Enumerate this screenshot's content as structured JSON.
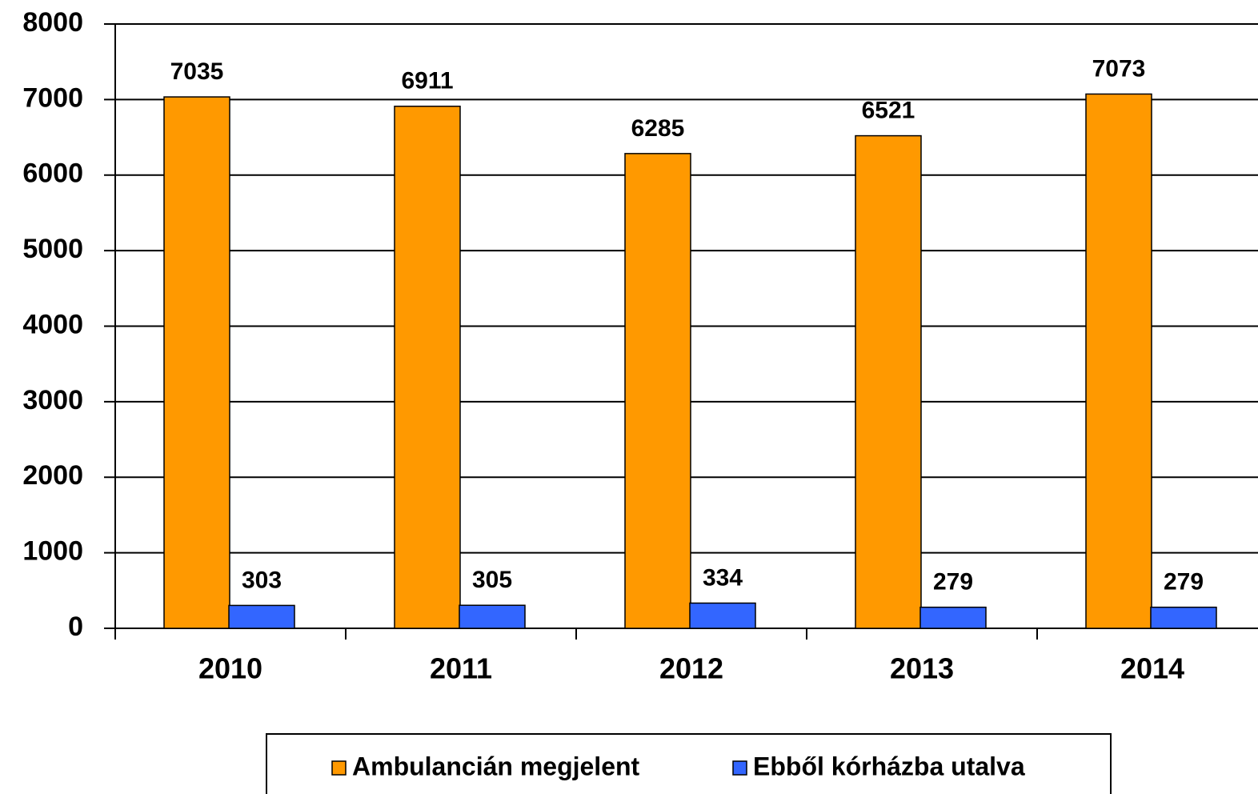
{
  "chart_data": {
    "type": "bar",
    "categories": [
      "2010",
      "2011",
      "2012",
      "2013",
      "2014"
    ],
    "series": [
      {
        "name": "Ambulancián megjelent",
        "color": "#ff9900",
        "values": [
          7035,
          6911,
          6285,
          6521,
          7073
        ]
      },
      {
        "name": "Ebből kórházba utalva",
        "color": "#3366ff",
        "values": [
          303,
          305,
          334,
          279,
          279
        ]
      }
    ],
    "ylim": [
      0,
      8000
    ],
    "yticks": [
      0,
      1000,
      2000,
      3000,
      4000,
      5000,
      6000,
      7000,
      8000
    ],
    "grid": true,
    "legend": "bottom"
  }
}
